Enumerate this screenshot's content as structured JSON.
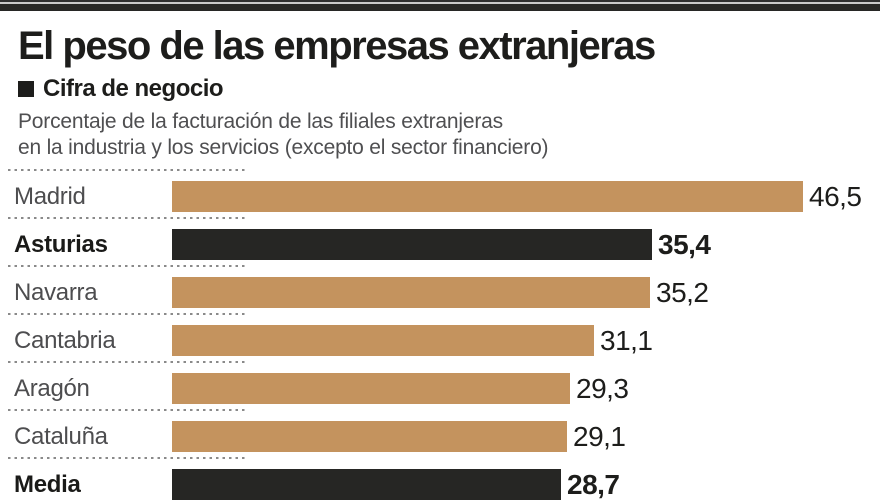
{
  "header": {
    "title": "El peso de las empresas extranjeras",
    "legend_label": "Cifra de negocio",
    "description_line1": "Porcentaje de la facturación de las filiales extranjeras",
    "description_line2": "en la industria y los servicios (excepto el sector financiero)"
  },
  "colors": {
    "bar_default": "#c4935e",
    "bar_highlight": "#262624",
    "label_default": "#4d4d4f",
    "label_highlight": "#1a1a18",
    "separator": "#8a8a8a",
    "title_text": "#1d1d1b",
    "description_text": "#4f4f51"
  },
  "chart_data": {
    "type": "bar",
    "orientation": "horizontal",
    "title": "El peso de las empresas extranjeras",
    "subtitle": "Cifra de negocio",
    "unit": "percent",
    "xlim": [
      0,
      46.5
    ],
    "grid": false,
    "legend_position": "none",
    "categories": [
      "Madrid",
      "Asturias",
      "Navarra",
      "Cantabria",
      "Aragón",
      "Cataluña",
      "Media"
    ],
    "values": [
      46.5,
      35.4,
      35.2,
      31.1,
      29.3,
      29.1,
      28.7
    ],
    "value_labels": [
      "46,5",
      "35,4",
      "35,2",
      "31,1",
      "29,3",
      "29,1",
      "28,7"
    ],
    "highlighted": [
      "Asturias",
      "Media"
    ]
  }
}
